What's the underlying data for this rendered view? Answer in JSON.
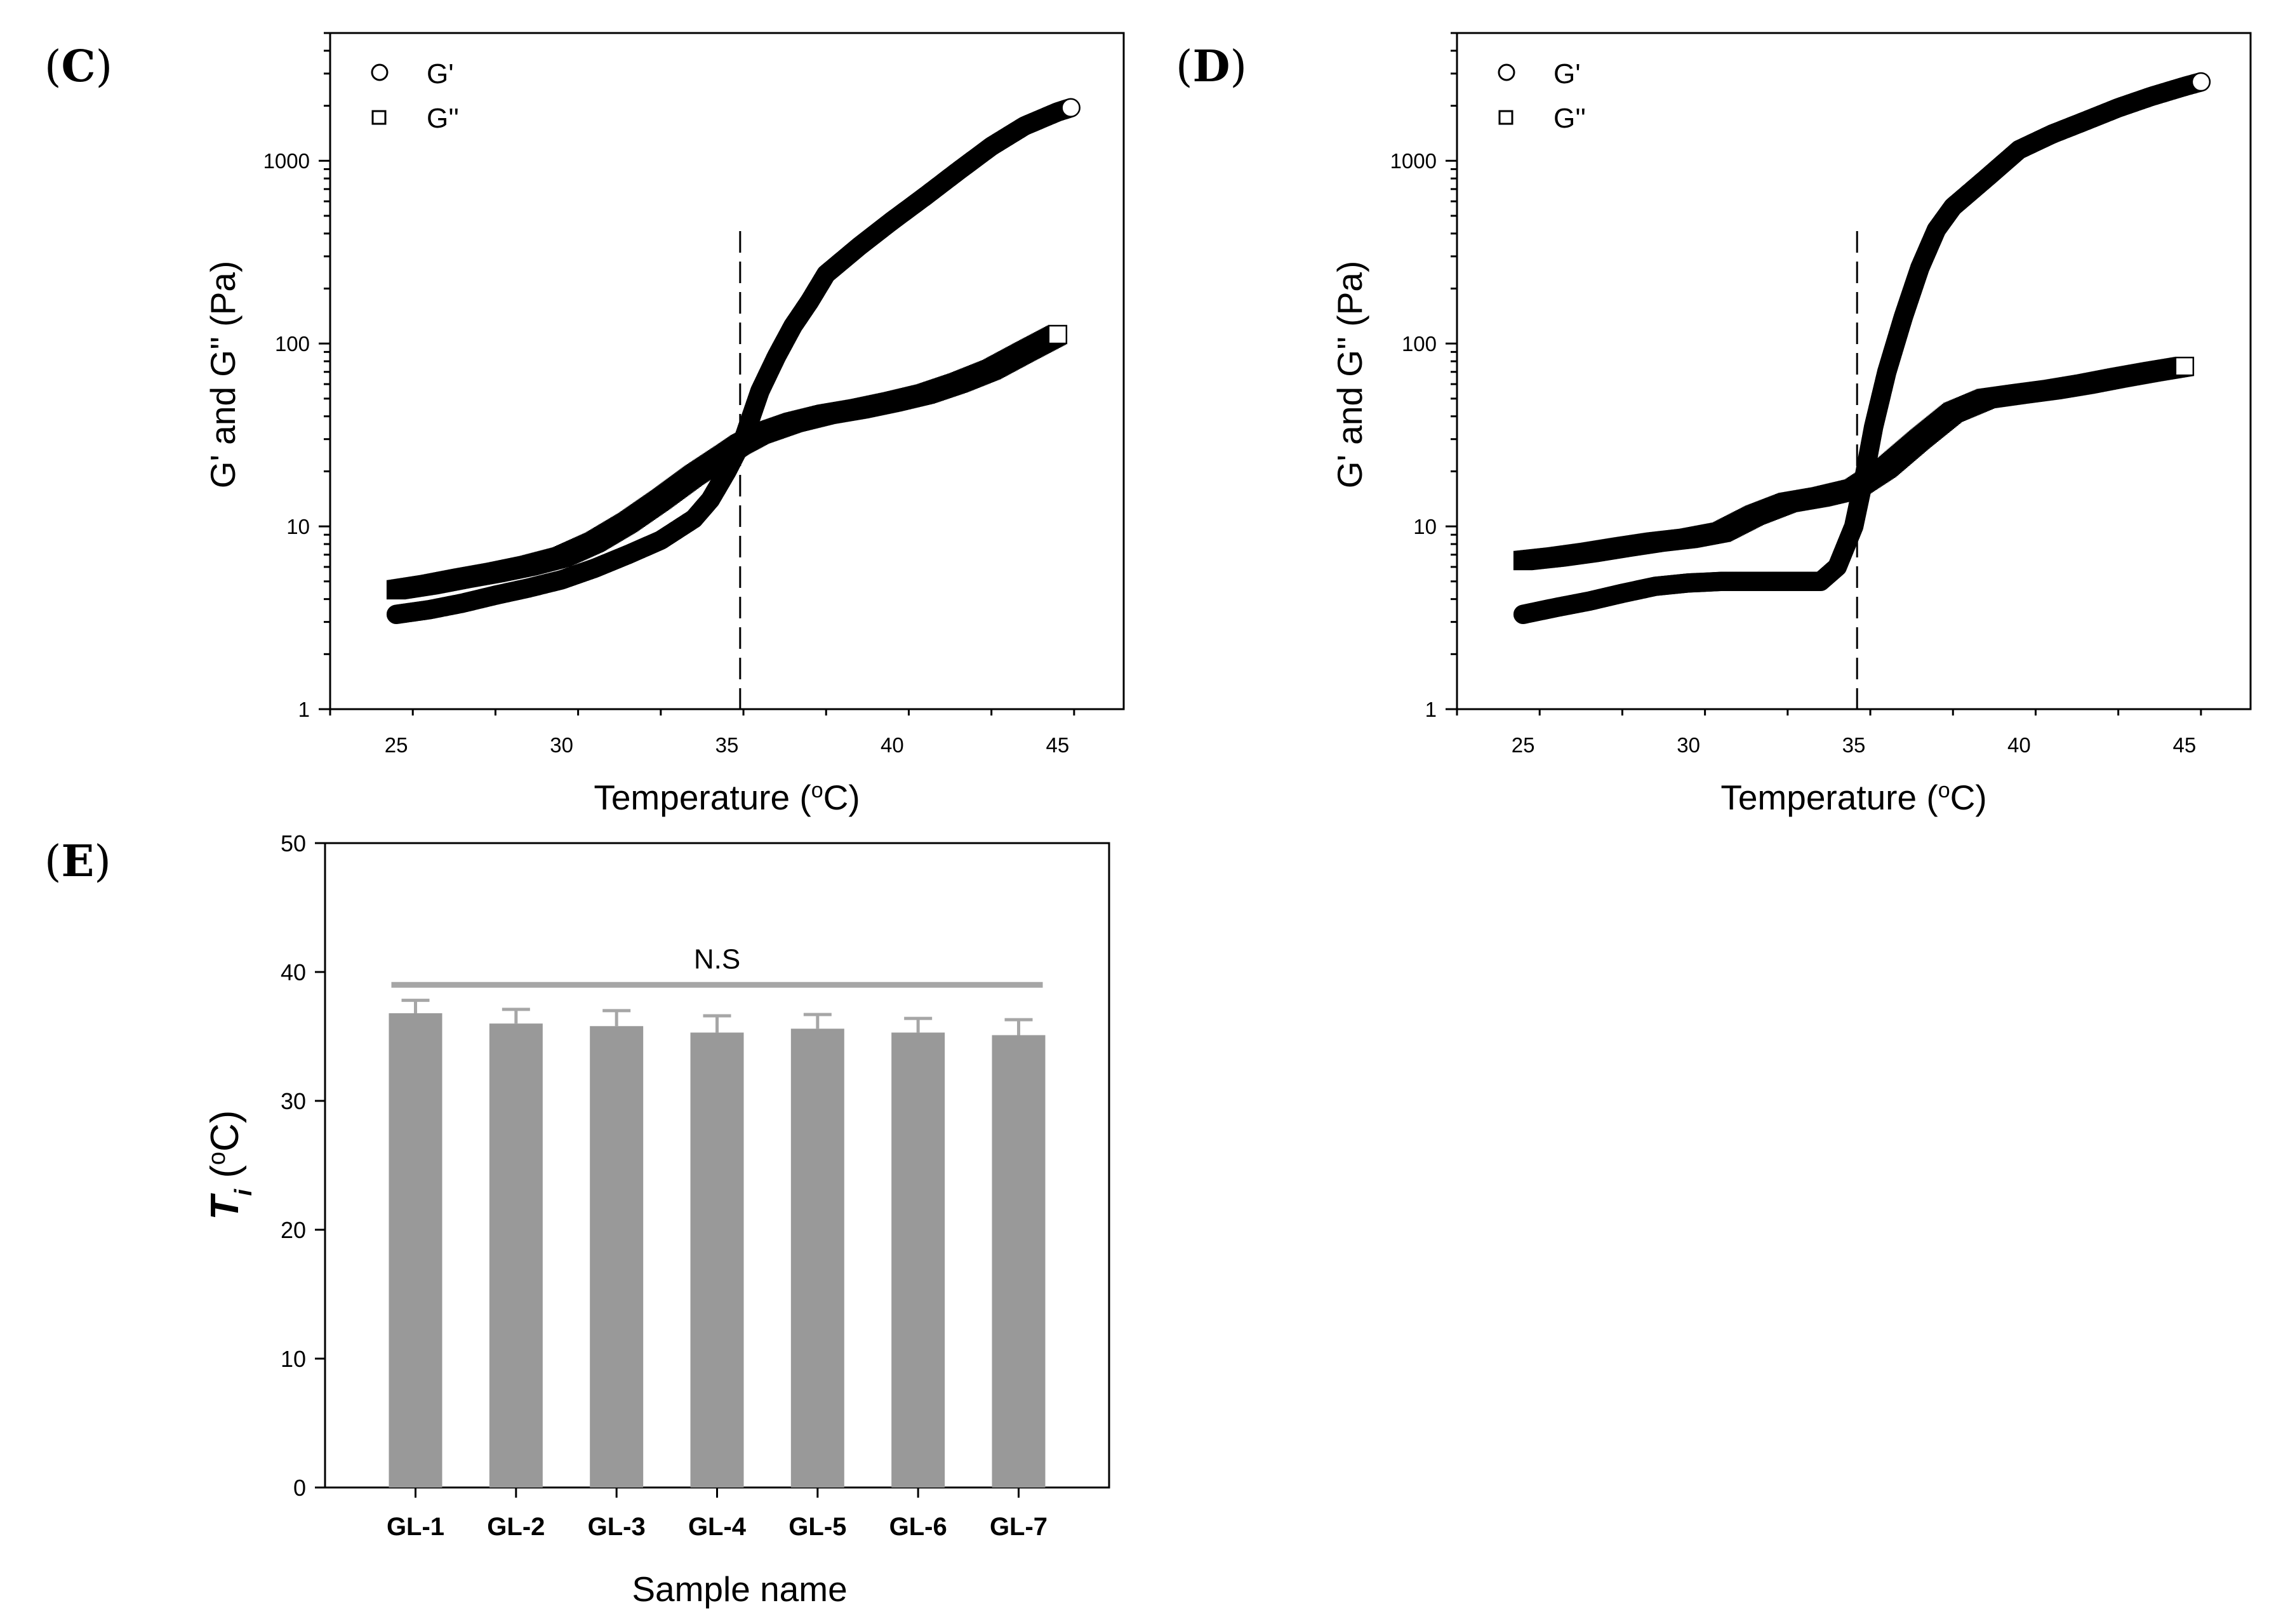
{
  "panels": {
    "c": {
      "letter": "C"
    },
    "d": {
      "letter": "D"
    },
    "e": {
      "letter": "E"
    }
  },
  "colors": {
    "bar": "#999999",
    "error": "#a6a6a6",
    "marker": "#000000"
  },
  "chart_data": [
    {
      "id": "C",
      "type": "scatter",
      "yscale": "log",
      "xlabel_text": "Temperature (",
      "xlabel_sup": "o",
      "xlabel_unit": "C)",
      "ylabel": "G' and G'' (Pa)",
      "xlim": [
        23,
        47
      ],
      "ylim": [
        1,
        5000
      ],
      "xticks": [
        25,
        30,
        35,
        40,
        45
      ],
      "yticks": [
        1,
        10,
        100,
        1000
      ],
      "xtick_labels": [
        "25",
        "30",
        "35",
        "40",
        "45"
      ],
      "ytick_labels": [
        "1",
        "10",
        "100",
        "1000"
      ],
      "crossover_x": 35.4,
      "legend": [
        "G'",
        "G''"
      ],
      "series": [
        {
          "name": "G'",
          "marker": "circle",
          "points": [
            [
              25,
              3.3
            ],
            [
              26,
              3.5
            ],
            [
              27,
              3.8
            ],
            [
              28,
              4.2
            ],
            [
              29,
              4.6
            ],
            [
              30,
              5.1
            ],
            [
              31,
              5.9
            ],
            [
              32,
              7.0
            ],
            [
              33,
              8.4
            ],
            [
              34,
              11.0
            ],
            [
              34.5,
              14.0
            ],
            [
              35,
              20.0
            ],
            [
              35.5,
              30.0
            ],
            [
              36,
              55.0
            ],
            [
              36.5,
              85.0
            ],
            [
              37,
              125.0
            ],
            [
              37.5,
              170.0
            ],
            [
              38,
              240.0
            ],
            [
              39,
              340.0
            ],
            [
              40,
              470.0
            ],
            [
              41,
              640.0
            ],
            [
              42,
              880.0
            ],
            [
              43,
              1200.0
            ],
            [
              44,
              1550.0
            ],
            [
              45,
              1850.0
            ],
            [
              45.4,
              1950.0
            ]
          ]
        },
        {
          "name": "G''",
          "marker": "square",
          "points": [
            [
              25,
              4.5
            ],
            [
              26,
              4.8
            ],
            [
              27,
              5.2
            ],
            [
              28,
              5.6
            ],
            [
              29,
              6.1
            ],
            [
              30,
              6.8
            ],
            [
              31,
              8.2
            ],
            [
              32,
              10.5
            ],
            [
              33,
              14.0
            ],
            [
              34,
              19.0
            ],
            [
              35,
              25.0
            ],
            [
              35.4,
              28.0
            ],
            [
              36,
              32.0
            ],
            [
              37,
              37.0
            ],
            [
              38,
              41.0
            ],
            [
              39,
              44.0
            ],
            [
              40,
              48.0
            ],
            [
              41,
              53.0
            ],
            [
              42,
              61.0
            ],
            [
              43,
              72.0
            ],
            [
              44,
              90.0
            ],
            [
              45,
              112.0
            ]
          ]
        }
      ]
    },
    {
      "id": "D",
      "type": "scatter",
      "yscale": "log",
      "xlabel_text": "Temperature (",
      "xlabel_sup": "o",
      "xlabel_unit": "C)",
      "ylabel": "G' and G'' (Pa)",
      "xlim": [
        23,
        47
      ],
      "ylim": [
        1,
        5000
      ],
      "xticks": [
        25,
        30,
        35,
        40,
        45
      ],
      "yticks": [
        1,
        10,
        100,
        1000
      ],
      "xtick_labels": [
        "25",
        "30",
        "35",
        "40",
        "45"
      ],
      "ytick_labels": [
        "1",
        "10",
        "100",
        "1000"
      ],
      "crossover_x": 35.1,
      "legend": [
        "G'",
        "G''"
      ],
      "series": [
        {
          "name": "G'",
          "marker": "circle",
          "points": [
            [
              25,
              3.3
            ],
            [
              26,
              3.6
            ],
            [
              27,
              3.9
            ],
            [
              28,
              4.3
            ],
            [
              29,
              4.7
            ],
            [
              30,
              4.9
            ],
            [
              31,
              5.0
            ],
            [
              32,
              5.0
            ],
            [
              33,
              5.0
            ],
            [
              34,
              5.0
            ],
            [
              34.5,
              6.0
            ],
            [
              35,
              10.0
            ],
            [
              35.3,
              18.0
            ],
            [
              35.6,
              35.0
            ],
            [
              36,
              70.0
            ],
            [
              36.5,
              140.0
            ],
            [
              37,
              260.0
            ],
            [
              37.5,
              420.0
            ],
            [
              38,
              560.0
            ],
            [
              39,
              800.0
            ],
            [
              40,
              1150.0
            ],
            [
              41,
              1400.0
            ],
            [
              42,
              1650.0
            ],
            [
              43,
              1950.0
            ],
            [
              44,
              2250.0
            ],
            [
              45,
              2550.0
            ],
            [
              45.5,
              2700.0
            ]
          ]
        },
        {
          "name": "G''",
          "marker": "square",
          "points": [
            [
              25,
              6.5
            ],
            [
              26,
              6.8
            ],
            [
              27,
              7.2
            ],
            [
              28,
              7.7
            ],
            [
              29,
              8.2
            ],
            [
              30,
              8.6
            ],
            [
              31,
              9.3
            ],
            [
              32,
              11.5
            ],
            [
              33,
              13.5
            ],
            [
              34,
              14.5
            ],
            [
              35,
              16.0
            ],
            [
              36,
              21.0
            ],
            [
              37,
              30.0
            ],
            [
              38,
              42.0
            ],
            [
              39,
              50.0
            ],
            [
              40,
              53.0
            ],
            [
              41,
              56.0
            ],
            [
              42,
              60.0
            ],
            [
              43,
              65.0
            ],
            [
              44,
              70.0
            ],
            [
              45,
              75.0
            ]
          ]
        }
      ]
    },
    {
      "id": "E",
      "type": "bar",
      "categories": [
        "GL-1",
        "GL-2",
        "GL-3",
        "GL-4",
        "GL-5",
        "GL-6",
        "GL-7"
      ],
      "values": [
        36.8,
        36.0,
        35.8,
        35.3,
        35.6,
        35.3,
        35.1
      ],
      "errors": [
        1.0,
        1.1,
        1.2,
        1.3,
        1.1,
        1.1,
        1.2
      ],
      "ylim": [
        0,
        50
      ],
      "yticks": [
        0,
        10,
        20,
        30,
        40,
        50
      ],
      "ytick_labels": [
        "0",
        "10",
        "20",
        "30",
        "40",
        "50"
      ],
      "xlabel": "Sample name",
      "ylabel_main": "T",
      "ylabel_sub": "i",
      "ylabel_unit_pre": " (",
      "ylabel_unit_sup": "o",
      "ylabel_unit_post": "C)",
      "annotation": "N.S",
      "annotation_y": 39
    }
  ]
}
